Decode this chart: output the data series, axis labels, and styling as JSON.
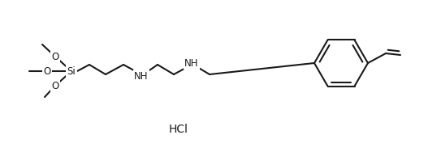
{
  "bg_color": "#ffffff",
  "line_color": "#1a1a1a",
  "line_width": 1.5,
  "font_size": 8.5,
  "hcl_text": "HCl",
  "hcl_fontsize": 10,
  "figsize": [
    5.43,
    1.88
  ],
  "dpi": 100,
  "si_label": "Si",
  "o_label": "O",
  "nh_label": "NH",
  "nh2_label": "NH"
}
